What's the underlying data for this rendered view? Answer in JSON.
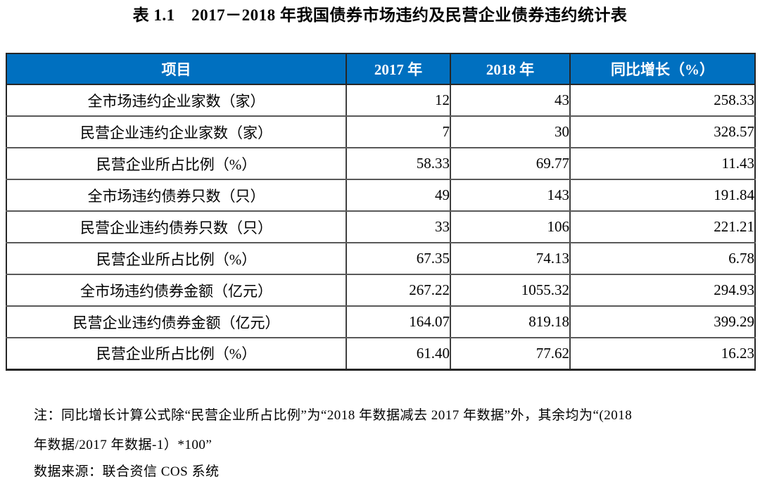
{
  "title": "表 1.1　2017－2018 年我国债券市场违约及民营企业债券违约统计表",
  "table": {
    "header": {
      "item": "项目",
      "y2017": "2017 年",
      "y2018": "2018 年",
      "yoy": "同比增长（%）"
    },
    "rows": [
      {
        "label": "全市场违约企业家数（家）",
        "y2017": "12",
        "y2018": "43",
        "yoy": "258.33"
      },
      {
        "label": "民营企业违约企业家数（家）",
        "y2017": "7",
        "y2018": "30",
        "yoy": "328.57"
      },
      {
        "label": "民营企业所占比例（%）",
        "y2017": "58.33",
        "y2018": "69.77",
        "yoy": "11.43"
      },
      {
        "label": "全市场违约债券只数（只）",
        "y2017": "49",
        "y2018": "143",
        "yoy": "191.84"
      },
      {
        "label": "民营企业违约债券只数（只）",
        "y2017": "33",
        "y2018": "106",
        "yoy": "221.21"
      },
      {
        "label": "民营企业所占比例（%）",
        "y2017": "67.35",
        "y2018": "74.13",
        "yoy": "6.78"
      },
      {
        "label": "全市场违约债券金额（亿元）",
        "y2017": "267.22",
        "y2018": "1055.32",
        "yoy": "294.93"
      },
      {
        "label": "民营企业违约债券金额（亿元）",
        "y2017": "164.07",
        "y2018": "819.18",
        "yoy": "399.29"
      },
      {
        "label": "民营企业所占比例（%）",
        "y2017": "61.40",
        "y2018": "77.62",
        "yoy": "16.23"
      }
    ]
  },
  "notes": {
    "line1": "注：同比增长计算公式除“民营企业所占比例”为“2018 年数据减去 2017 年数据”外，其余均为“(2018",
    "line2": "年数据/2017 年数据-1）*100”",
    "source": "数据来源：联合资信 COS 系统"
  },
  "colors": {
    "header_bg": "#0070c0",
    "header_text": "#ffffff",
    "outer_border": "#262626",
    "inner_border": "#595959",
    "body_text": "#000000"
  }
}
